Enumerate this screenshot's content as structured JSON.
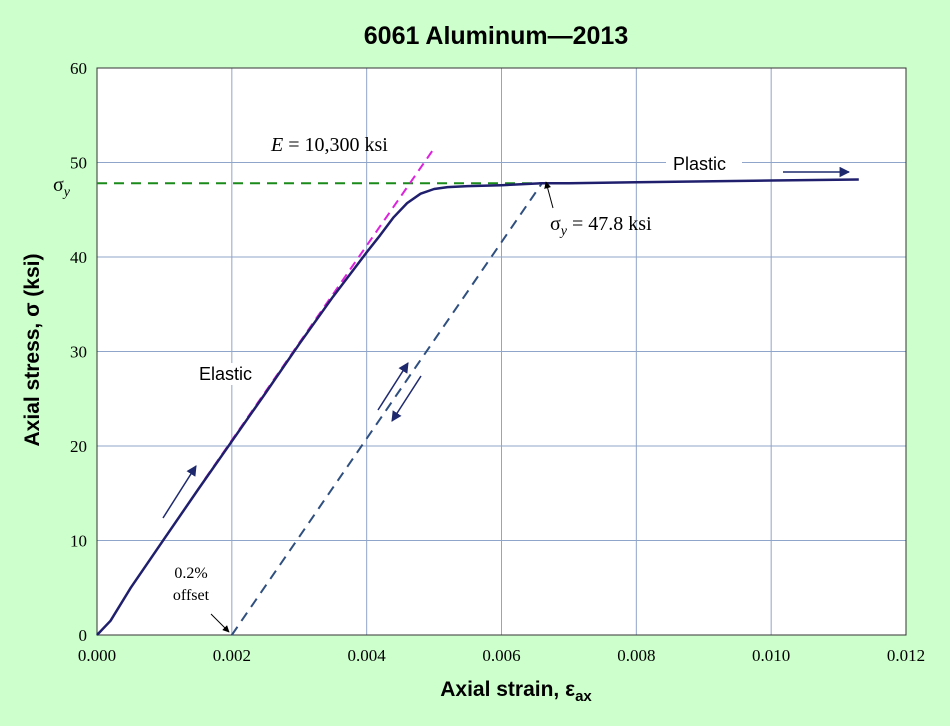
{
  "chart_data": {
    "type": "line",
    "title": "6061 Aluminum—2013",
    "xlabel": "Axial strain, ε",
    "xlabel_sub": "ax",
    "ylabel": "Axial stress, σ (ksi)",
    "xlim": [
      0,
      0.012
    ],
    "ylim": [
      0,
      60
    ],
    "x_ticks": [
      0,
      0.002,
      0.004,
      0.006,
      0.008,
      0.01,
      0.012
    ],
    "x_tick_labels": [
      "0.000",
      "0.002",
      "0.004",
      "0.006",
      "0.008",
      "0.010",
      "0.012"
    ],
    "y_ticks": [
      0,
      10,
      20,
      30,
      40,
      50,
      60
    ],
    "y_tick_labels": [
      "0",
      "10",
      "20",
      "30",
      "40",
      "50",
      "60"
    ],
    "grid": true,
    "colors": {
      "background": "#ccffcc",
      "plot_area": "#ffffff",
      "curve": "#1f1f6e",
      "modulus_line": "#dd22dd",
      "yield_line": "#1a8a1a",
      "offset_line": "#2f4f7f",
      "arrow": "#1f2a6e",
      "grid": "#8fa5c9"
    },
    "series": [
      {
        "style": "solid",
        "x": [
          0,
          0.0002,
          0.0005,
          0.001,
          0.0015,
          0.002,
          0.0025,
          0.003,
          0.0035,
          0.004,
          0.0042,
          0.0044,
          0.0046,
          0.0048,
          0.005,
          0.0052,
          0.0055,
          0.006,
          0.0066,
          0.007,
          0.008,
          0.009,
          0.01,
          0.0113
        ],
        "y": [
          0,
          1.5,
          5,
          10.2,
          15.4,
          20.5,
          25.6,
          30.8,
          35.8,
          40.5,
          42.3,
          44.2,
          45.7,
          46.7,
          47.2,
          47.4,
          47.5,
          47.6,
          47.8,
          47.8,
          47.9,
          48.0,
          48.1,
          48.2
        ]
      },
      {
        "style": "dashed-modulus",
        "x": [
          0.0016,
          0.005
        ],
        "y": [
          16.5,
          51.5
        ]
      },
      {
        "style": "dashed-yield",
        "x": [
          0,
          0.0066
        ],
        "y": [
          47.8,
          47.8
        ]
      },
      {
        "style": "dashed-offset",
        "x": [
          0.002,
          0.0066
        ],
        "y": [
          0,
          47.8
        ]
      }
    ],
    "annotations": {
      "modulus_var": "E",
      "modulus_value": " = 10,300 ksi",
      "sigma_y_label": "σ",
      "sigma_y_sub": "y",
      "yield_value_sym": "σ",
      "yield_value_sub": "y",
      "yield_value": " = 47.8 ksi",
      "elastic": "Elastic",
      "plastic": "Plastic",
      "offset_line1": "0.2%",
      "offset_line2": "offset"
    }
  }
}
